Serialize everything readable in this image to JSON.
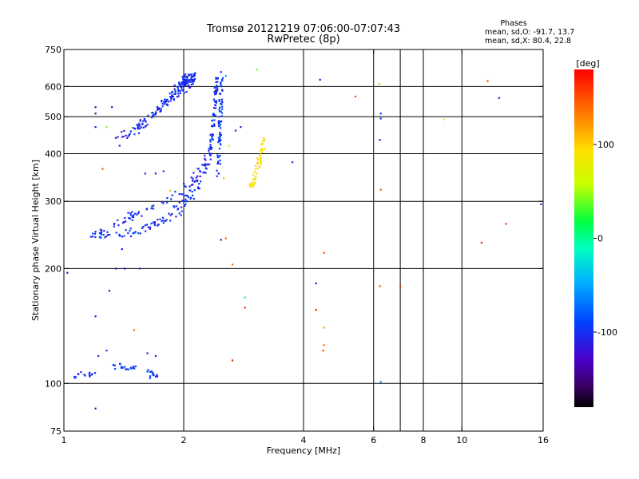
{
  "chart_data": {
    "type": "scatter",
    "title": "Tromsø 20121219 07:06:00-07:07:43",
    "subtitle": "RwPretec (8p)",
    "xlabel": "Frequency [MHz]",
    "ylabel": "Stationary phase Virtual Height [km]",
    "x_scale": "log",
    "y_scale": "log",
    "xlim": [
      1,
      16
    ],
    "ylim": [
      75,
      750
    ],
    "x_ticks": [
      1,
      2,
      4,
      6,
      8,
      10,
      16
    ],
    "x_tick_labels": [
      "1",
      "2",
      "4",
      "6",
      "8",
      "10",
      "16"
    ],
    "x_gridlines": [
      2,
      4,
      6,
      7,
      8,
      10
    ],
    "y_ticks": [
      75,
      100,
      200,
      300,
      400,
      500,
      600,
      750
    ],
    "y_tick_labels": [
      "75",
      "100",
      "200",
      "300",
      "400",
      "500",
      "600",
      "750"
    ],
    "y_gridlines": [
      100,
      200,
      300,
      400,
      500,
      600
    ],
    "grid": true,
    "stats": {
      "header": "Phases",
      "line1": "mean, sd,O: -91.7, 13.7",
      "line2": "mean, sd,X:  80.4, 22.8"
    },
    "colorbar": {
      "label": "[deg]",
      "range": [
        -180,
        180
      ],
      "ticks": [
        100,
        0,
        -100
      ],
      "tick_labels": [
        "100",
        "0",
        "-100"
      ]
    },
    "traces": [
      {
        "x": [
          1.4,
          1.55,
          1.7,
          1.85,
          2.0,
          2.05,
          2.1
        ],
        "y": [
          445,
          470,
          510,
          560,
          605,
          625,
          640
        ],
        "phase": -105,
        "spread": 0.035,
        "count": 130
      },
      {
        "x": [
          1.5,
          1.65,
          1.8,
          1.95,
          2.08
        ],
        "y": [
          455,
          500,
          545,
          585,
          630
        ],
        "phase": -100,
        "spread": 0.025,
        "count": 60
      },
      {
        "x": [
          1.18,
          1.3,
          1.45,
          1.6,
          1.75,
          1.9,
          2.0,
          2.1,
          2.2,
          2.3
        ],
        "y": [
          248,
          246,
          248,
          255,
          265,
          280,
          295,
          315,
          345,
          385
        ],
        "phase": -100,
        "spread": 0.03,
        "count": 120
      },
      {
        "x": [
          1.3,
          1.45,
          1.6,
          1.75,
          1.9,
          2.05,
          2.2,
          2.32
        ],
        "y": [
          258,
          272,
          282,
          296,
          310,
          330,
          360,
          400
        ],
        "phase": -105,
        "spread": 0.025,
        "count": 60
      },
      {
        "x": [
          2.32,
          2.35,
          2.38,
          2.4,
          2.42
        ],
        "y": [
          380,
          440,
          500,
          560,
          640
        ],
        "phase": -100,
        "spread": 0.01,
        "count": 70
      },
      {
        "x": [
          2.44,
          2.46,
          2.47,
          2.48,
          2.5
        ],
        "y": [
          350,
          420,
          490,
          560,
          635
        ],
        "phase": -95,
        "spread": 0.01,
        "count": 70
      },
      {
        "x": [
          2.95,
          3.05,
          3.12,
          3.2
        ],
        "y": [
          325,
          360,
          395,
          440
        ],
        "phase": 90,
        "spread": 0.015,
        "count": 55
      },
      {
        "x": [
          1.05,
          1.1,
          1.15,
          1.2
        ],
        "y": [
          104,
          106,
          105,
          107
        ],
        "phase": -100,
        "spread": 0.015,
        "count": 15
      },
      {
        "x": [
          1.32,
          1.38,
          1.45,
          1.52,
          1.58,
          1.65,
          1.7
        ],
        "y": [
          110,
          112,
          108,
          111,
          109,
          106,
          104
        ],
        "phase": -95,
        "spread": 0.02,
        "count": 35
      }
    ],
    "scattered_points": [
      {
        "x": 1.2,
        "y": 530,
        "phase": -130
      },
      {
        "x": 1.2,
        "y": 510,
        "phase": -140
      },
      {
        "x": 1.32,
        "y": 530,
        "phase": -120
      },
      {
        "x": 1.28,
        "y": 470,
        "phase": 40
      },
      {
        "x": 1.2,
        "y": 470,
        "phase": -110
      },
      {
        "x": 1.25,
        "y": 365,
        "phase": 150
      },
      {
        "x": 1.35,
        "y": 440,
        "phase": -110
      },
      {
        "x": 1.38,
        "y": 420,
        "phase": -115
      },
      {
        "x": 1.6,
        "y": 355,
        "phase": -110
      },
      {
        "x": 1.7,
        "y": 355,
        "phase": -120
      },
      {
        "x": 1.78,
        "y": 360,
        "phase": -100
      },
      {
        "x": 1.45,
        "y": 280,
        "phase": -110
      },
      {
        "x": 1.85,
        "y": 320,
        "phase": 110
      },
      {
        "x": 1.4,
        "y": 225,
        "phase": -120
      },
      {
        "x": 1.2,
        "y": 250,
        "phase": -110
      },
      {
        "x": 1.35,
        "y": 200,
        "phase": -120
      },
      {
        "x": 1.42,
        "y": 200,
        "phase": -130
      },
      {
        "x": 1.55,
        "y": 200,
        "phase": -110
      },
      {
        "x": 1.02,
        "y": 195,
        "phase": -130
      },
      {
        "x": 1.3,
        "y": 175,
        "phase": -130
      },
      {
        "x": 1.2,
        "y": 150,
        "phase": -120
      },
      {
        "x": 1.5,
        "y": 138,
        "phase": 140
      },
      {
        "x": 1.22,
        "y": 118,
        "phase": -110
      },
      {
        "x": 1.2,
        "y": 86,
        "phase": -130
      },
      {
        "x": 1.28,
        "y": 122,
        "phase": -100
      },
      {
        "x": 1.62,
        "y": 120,
        "phase": -110
      },
      {
        "x": 1.7,
        "y": 118,
        "phase": -100
      },
      {
        "x": 2.48,
        "y": 655,
        "phase": -100
      },
      {
        "x": 2.55,
        "y": 640,
        "phase": -50
      },
      {
        "x": 3.05,
        "y": 665,
        "phase": 40
      },
      {
        "x": 2.7,
        "y": 460,
        "phase": -110
      },
      {
        "x": 2.78,
        "y": 470,
        "phase": -110
      },
      {
        "x": 2.6,
        "y": 420,
        "phase": 60
      },
      {
        "x": 2.52,
        "y": 345,
        "phase": 110
      },
      {
        "x": 2.45,
        "y": 355,
        "phase": -110
      },
      {
        "x": 2.48,
        "y": 238,
        "phase": -130
      },
      {
        "x": 2.55,
        "y": 240,
        "phase": 140
      },
      {
        "x": 2.65,
        "y": 205,
        "phase": 140
      },
      {
        "x": 2.85,
        "y": 168,
        "phase": -20
      },
      {
        "x": 2.85,
        "y": 158,
        "phase": 160
      },
      {
        "x": 2.65,
        "y": 115,
        "phase": 170
      },
      {
        "x": 3.75,
        "y": 380,
        "phase": -100
      },
      {
        "x": 4.4,
        "y": 625,
        "phase": -130
      },
      {
        "x": 5.4,
        "y": 565,
        "phase": 150
      },
      {
        "x": 4.5,
        "y": 220,
        "phase": 150
      },
      {
        "x": 4.3,
        "y": 183,
        "phase": -130
      },
      {
        "x": 4.3,
        "y": 156,
        "phase": 170
      },
      {
        "x": 4.5,
        "y": 140,
        "phase": 120
      },
      {
        "x": 4.5,
        "y": 126,
        "phase": 140
      },
      {
        "x": 4.48,
        "y": 122,
        "phase": 150
      },
      {
        "x": 6.2,
        "y": 610,
        "phase": 40
      },
      {
        "x": 6.25,
        "y": 510,
        "phase": -100
      },
      {
        "x": 6.25,
        "y": 495,
        "phase": -110
      },
      {
        "x": 6.22,
        "y": 435,
        "phase": -120
      },
      {
        "x": 6.25,
        "y": 322,
        "phase": 150
      },
      {
        "x": 6.22,
        "y": 180,
        "phase": 150
      },
      {
        "x": 7.0,
        "y": 180,
        "phase": 160
      },
      {
        "x": 6.25,
        "y": 101,
        "phase": -60
      },
      {
        "x": 9.0,
        "y": 492,
        "phase": 60
      },
      {
        "x": 11.6,
        "y": 620,
        "phase": 150
      },
      {
        "x": 12.4,
        "y": 560,
        "phase": -110
      },
      {
        "x": 11.2,
        "y": 234,
        "phase": 170
      },
      {
        "x": 12.9,
        "y": 262,
        "phase": 160
      },
      {
        "x": 15.8,
        "y": 295,
        "phase": -110
      }
    ]
  }
}
